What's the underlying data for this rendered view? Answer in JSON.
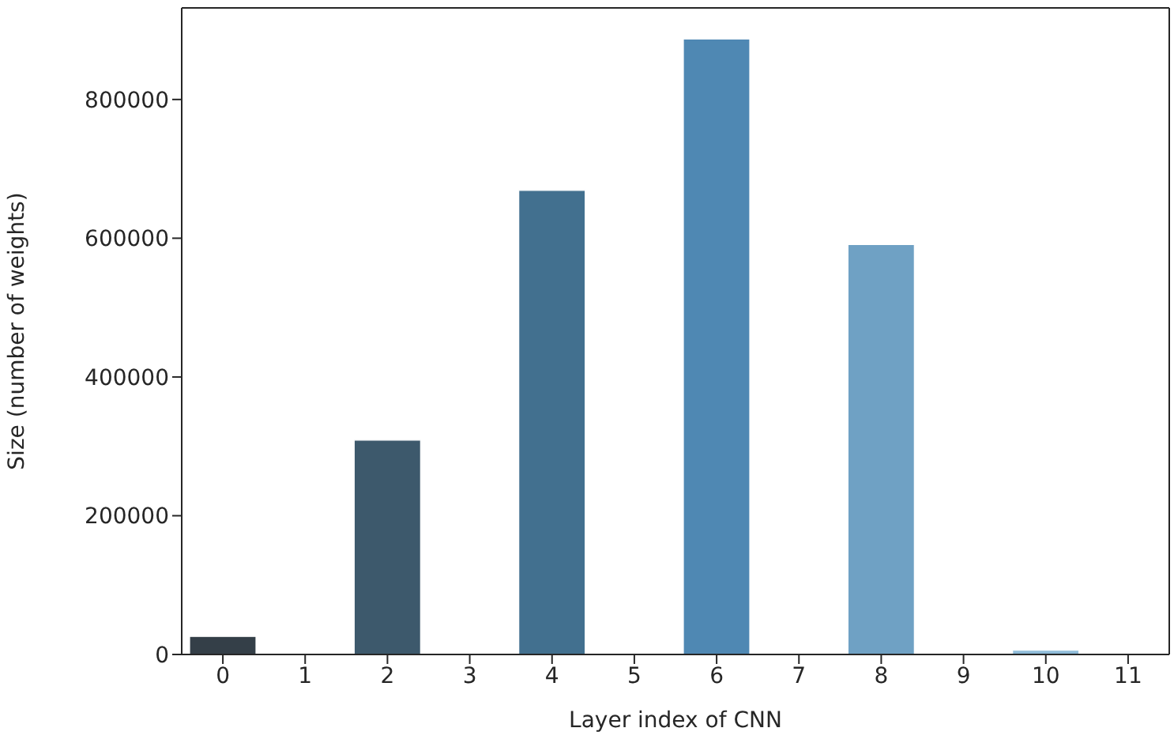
{
  "chart_data": {
    "type": "bar",
    "xlabel": "Layer index of CNN",
    "ylabel": "Size (number of weights)",
    "categories": [
      "0",
      "1",
      "2",
      "3",
      "4",
      "5",
      "6",
      "7",
      "8",
      "9",
      "10",
      "11"
    ],
    "values": [
      26000,
      0,
      309000,
      0,
      669000,
      0,
      887000,
      0,
      591000,
      0,
      6000,
      0
    ],
    "colors": [
      "#343f48",
      "#383f48",
      "#3d596c",
      "#3f6580",
      "#42708f",
      "#4a7ca2",
      "#4f88b3",
      "#5e95bd",
      "#6fa1c4",
      "#80afcf",
      "#8fbcd9",
      "#a0c8e0"
    ],
    "ylim": [
      0,
      932000
    ],
    "yticks": [
      0,
      200000,
      400000,
      600000,
      800000
    ],
    "grid": false,
    "legend": false
  }
}
